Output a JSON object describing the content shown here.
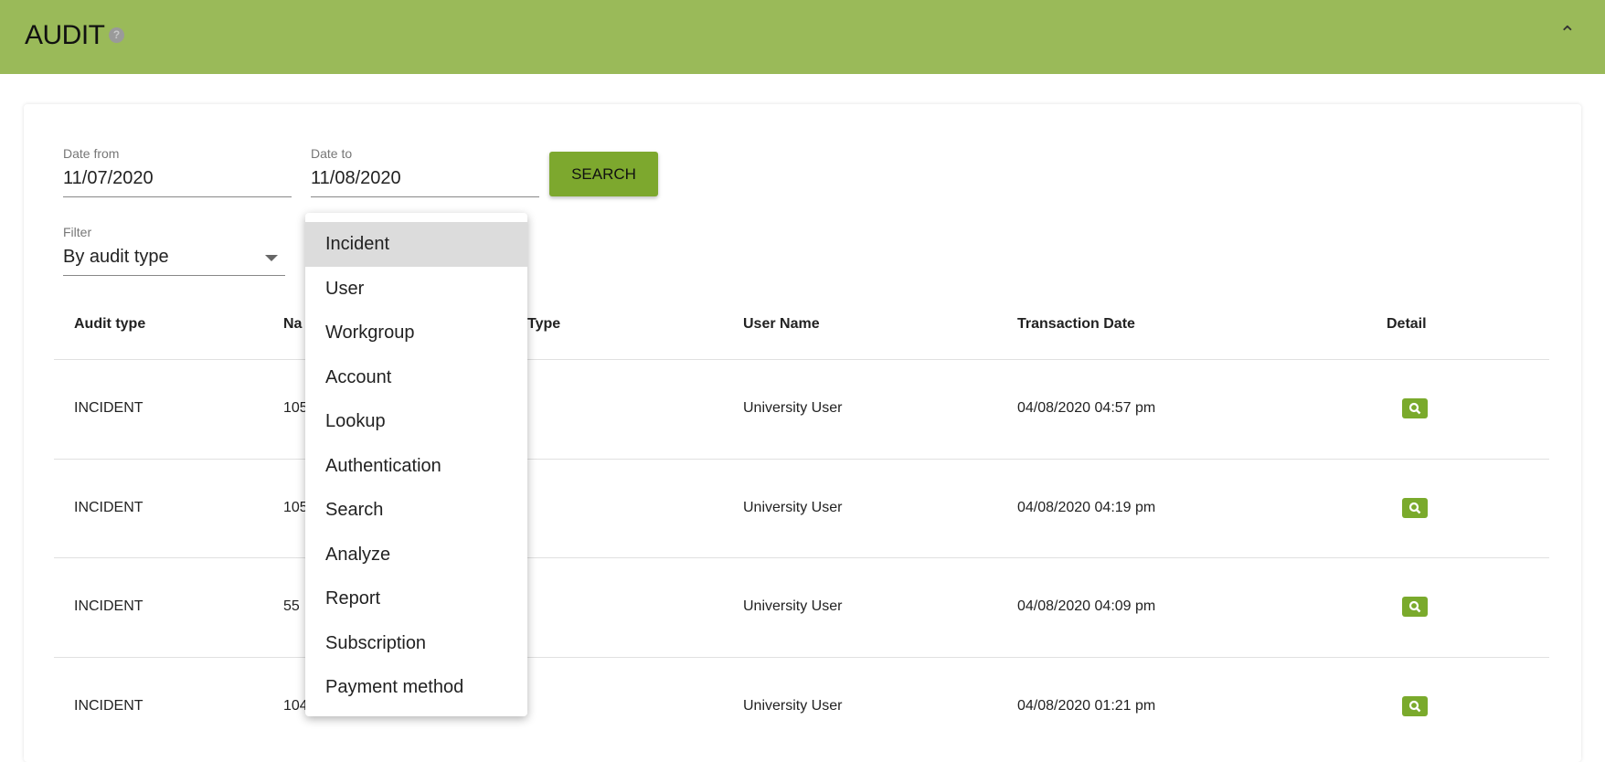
{
  "header": {
    "title": "AUDIT",
    "help_icon": "question-circle-icon",
    "collapse_icon": "chevron-up-icon"
  },
  "form": {
    "date_from": {
      "label": "Date from",
      "value": "11/07/2020"
    },
    "date_to": {
      "label": "Date to",
      "value": "11/08/2020"
    },
    "search_label": "SEARCH",
    "filter": {
      "label": "Filter",
      "value": "By audit type"
    }
  },
  "table": {
    "headers": [
      "Audit type",
      "Na",
      "Type",
      "User Name",
      "Transaction Date",
      "Detail"
    ],
    "rows": [
      {
        "audit_type": "INCIDENT",
        "name": "105",
        "user": "University User",
        "date": "04/08/2020 04:57 pm"
      },
      {
        "audit_type": "INCIDENT",
        "name": "105",
        "user": "University User",
        "date": "04/08/2020 04:19 pm"
      },
      {
        "audit_type": "INCIDENT",
        "name": "55",
        "user": "University User",
        "date": "04/08/2020 04:09 pm"
      },
      {
        "audit_type": "INCIDENT",
        "name": "104",
        "user": "University User",
        "date": "04/08/2020 01:21 pm"
      }
    ]
  },
  "dropdown": {
    "selected": "Incident",
    "options": [
      "Incident",
      "User",
      "Workgroup",
      "Account",
      "Lookup",
      "Authentication",
      "Search",
      "Analyze",
      "Report",
      "Subscription",
      "Payment method"
    ]
  },
  "colors": {
    "header": "#9aba59",
    "accent": "#7da82e"
  }
}
